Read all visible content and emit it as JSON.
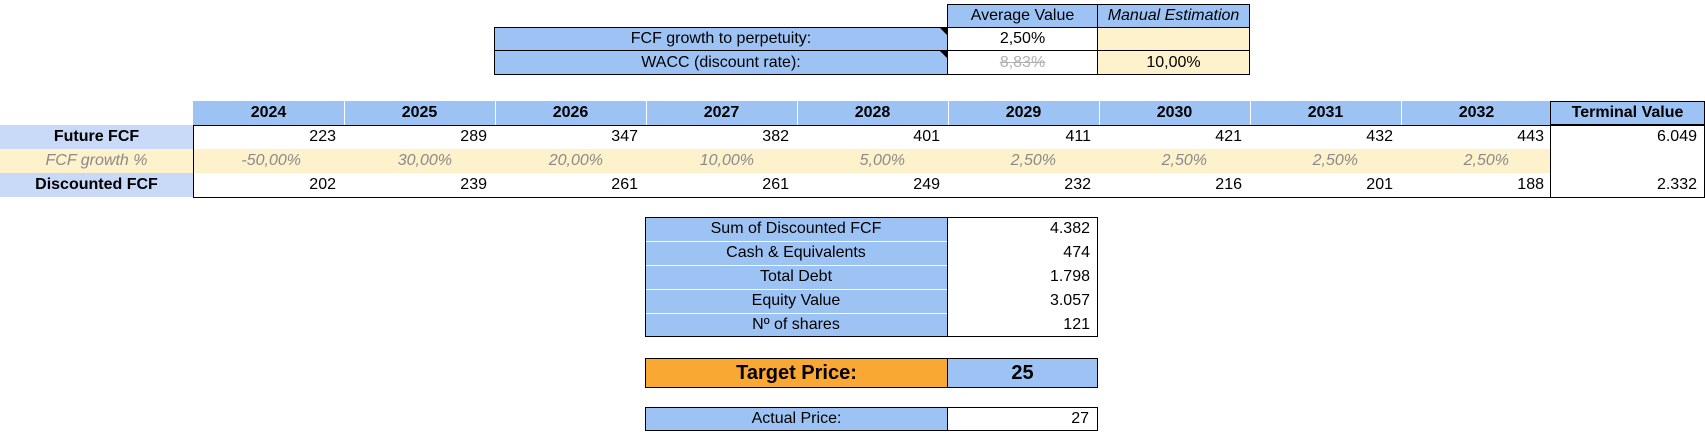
{
  "assumptions": {
    "col_average": "Average Value",
    "col_manual": "Manual Estimation",
    "rows": [
      {
        "label": "FCF growth to perpetuity:",
        "average": "2,50%",
        "manual": ""
      },
      {
        "label": "WACC (discount rate):",
        "average": "8,83%",
        "manual": "10,00%"
      }
    ]
  },
  "dcf": {
    "years": [
      "2024",
      "2025",
      "2026",
      "2027",
      "2028",
      "2029",
      "2030",
      "2031",
      "2032"
    ],
    "terminal_header": "Terminal Value",
    "future_fcf_label": "Future FCF",
    "future_fcf": [
      "223",
      "289",
      "347",
      "382",
      "401",
      "411",
      "421",
      "432",
      "443"
    ],
    "future_terminal": "6.049",
    "growth_label": "FCF growth %",
    "growth": [
      "-50,00%",
      "30,00%",
      "20,00%",
      "10,00%",
      "5,00%",
      "2,50%",
      "2,50%",
      "2,50%",
      "2,50%"
    ],
    "discounted_label": "Discounted FCF",
    "discounted": [
      "202",
      "239",
      "261",
      "261",
      "249",
      "232",
      "216",
      "201",
      "188"
    ],
    "discounted_terminal": "2.332"
  },
  "summary": [
    {
      "label": "Sum of Discounted FCF",
      "value": "4.382"
    },
    {
      "label": "Cash & Equivalents",
      "value": "474"
    },
    {
      "label": "Total Debt",
      "value": "1.798"
    },
    {
      "label": "Equity Value",
      "value": "3.057"
    },
    {
      "label": "Nº of shares",
      "value": "121"
    }
  ],
  "target": {
    "label": "Target Price:",
    "value": "25"
  },
  "actual": {
    "label": "Actual Price:",
    "value": "27"
  }
}
